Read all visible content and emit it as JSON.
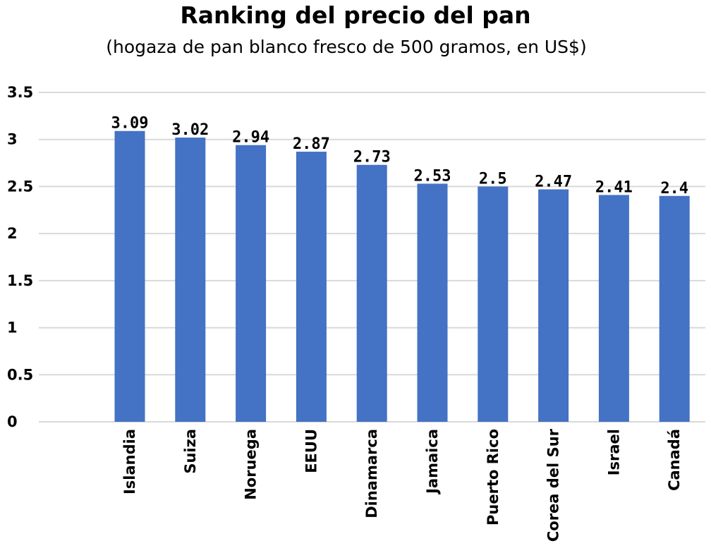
{
  "chart_data": {
    "type": "bar",
    "title": "Ranking del precio del pan",
    "subtitle": "(hogaza de pan blanco fresco de 500 gramos, en US$)",
    "xlabel": "",
    "ylabel": "",
    "categories": [
      "Islandia",
      "Suiza",
      "Noruega",
      "EEUU",
      "Dinamarca",
      "Jamaica",
      "Puerto Rico",
      "Corea del Sur",
      "Israel",
      "Canadá"
    ],
    "values": [
      3.09,
      3.02,
      2.94,
      2.87,
      2.73,
      2.53,
      2.5,
      2.47,
      2.41,
      2.4
    ],
    "data_labels": [
      "3.09",
      "3.02",
      "2.94",
      "2.87",
      "2.73",
      "2.53",
      "2.5",
      "2.47",
      "2.41",
      "2.4"
    ],
    "ylim": [
      0,
      3.5
    ],
    "yticks": [
      "0",
      "0.5",
      "1",
      "1.5",
      "2",
      "2.5",
      "3",
      "3.5"
    ],
    "grid": true,
    "legend": "none",
    "bar_color": "#4472c4"
  }
}
